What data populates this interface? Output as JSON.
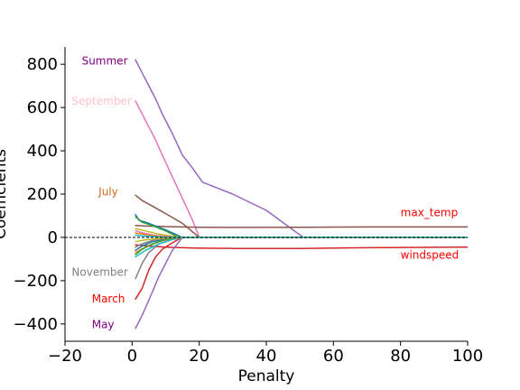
{
  "chart_data": {
    "type": "line",
    "title": "",
    "xlabel": "Penalty",
    "ylabel": "Coefficients",
    "xlim": [
      -20,
      100
    ],
    "ylim": [
      -480,
      880
    ],
    "xticks": [
      -20,
      0,
      20,
      40,
      60,
      80,
      100
    ],
    "yticks": [
      -400,
      -200,
      0,
      200,
      400,
      600,
      800
    ],
    "zero_line": true,
    "grid": false,
    "annotations": [
      {
        "text": "Summer",
        "x": -15,
        "y": 815,
        "color": "#800080"
      },
      {
        "text": "September",
        "x": -18,
        "y": 630,
        "color": "#ffc0cb"
      },
      {
        "text": "July",
        "x": -10,
        "y": 210,
        "color": "#d2691e"
      },
      {
        "text": "November",
        "x": -18,
        "y": -160,
        "color": "#808080"
      },
      {
        "text": "March",
        "x": -12,
        "y": -283,
        "color": "#ff0000"
      },
      {
        "text": "May",
        "x": -12,
        "y": -403,
        "color": "#800080"
      },
      {
        "text": "max_temp",
        "x": 80,
        "y": 115,
        "color": "#ff0000"
      },
      {
        "text": "windspeed",
        "x": 80,
        "y": -82,
        "color": "#ff0000"
      }
    ],
    "series": [
      {
        "color": "#9467bd",
        "x": [
          1,
          3,
          5,
          7,
          9,
          12,
          15,
          18,
          21,
          30,
          40,
          51,
          60,
          80,
          100
        ],
        "y": [
          820,
          760,
          700,
          640,
          570,
          480,
          380,
          320,
          255,
          200,
          125,
          0,
          0,
          0,
          0
        ]
      },
      {
        "color": "#e377c2",
        "x": [
          1,
          3,
          5,
          7,
          9,
          12,
          15,
          18,
          20,
          30,
          60,
          100
        ],
        "y": [
          630,
          570,
          510,
          450,
          380,
          280,
          180,
          80,
          0,
          0,
          0,
          0
        ]
      },
      {
        "color": "#8c564b",
        "x": [
          1,
          3,
          6,
          10,
          15,
          20,
          30,
          50,
          70,
          100
        ],
        "y": [
          195,
          170,
          145,
          110,
          65,
          0,
          0,
          0,
          0,
          0
        ]
      },
      {
        "color": "#8c564b",
        "x": [
          1,
          5,
          10,
          15,
          20,
          30,
          50,
          70,
          100
        ],
        "y": [
          55,
          52,
          50,
          48,
          47,
          46,
          47,
          48,
          48
        ]
      },
      {
        "color": "#d62728",
        "x": [
          1,
          5,
          10,
          15,
          20,
          30,
          50,
          70,
          100
        ],
        "y": [
          -35,
          -40,
          -45,
          -48,
          -50,
          -51,
          -51,
          -48,
          -45
        ]
      },
      {
        "color": "#d62728",
        "x": [
          1,
          3,
          5,
          7,
          9,
          12,
          15,
          20,
          60,
          100
        ],
        "y": [
          -285,
          -235,
          -150,
          -90,
          -55,
          -25,
          0,
          0,
          0,
          0
        ]
      },
      {
        "color": "#9467bd",
        "x": [
          1,
          3,
          5,
          8,
          10,
          12,
          15,
          20,
          60,
          100
        ],
        "y": [
          -420,
          -360,
          -290,
          -180,
          -120,
          -60,
          0,
          0,
          0,
          0
        ]
      },
      {
        "color": "#7f7f7f",
        "x": [
          1,
          3,
          5,
          8,
          12,
          16,
          20,
          60,
          100
        ],
        "y": [
          -190,
          -120,
          -70,
          -30,
          -10,
          0,
          0,
          0,
          0
        ]
      },
      {
        "color": "#1f77b4",
        "x": [
          1,
          2,
          5,
          10,
          15,
          20,
          60,
          100
        ],
        "y": [
          105,
          80,
          65,
          35,
          0,
          0,
          0,
          0
        ]
      },
      {
        "color": "#2ca02c",
        "x": [
          1,
          3,
          6,
          10,
          14,
          20,
          60,
          100
        ],
        "y": [
          95,
          70,
          55,
          30,
          0,
          0,
          0,
          0
        ]
      },
      {
        "color": "#bcbd22",
        "x": [
          1,
          4,
          8,
          12,
          16,
          20,
          60,
          100
        ],
        "y": [
          40,
          30,
          15,
          5,
          0,
          0,
          0,
          0
        ]
      },
      {
        "color": "#17becf",
        "x": [
          1,
          4,
          8,
          12,
          16,
          20,
          60,
          100
        ],
        "y": [
          -90,
          -60,
          -30,
          -10,
          0,
          0,
          0,
          0
        ]
      },
      {
        "color": "#ff7f0e",
        "x": [
          1,
          4,
          8,
          12,
          16,
          20,
          60,
          100
        ],
        "y": [
          -70,
          -45,
          -20,
          -5,
          0,
          0,
          0,
          0
        ]
      },
      {
        "color": "#1f77b4",
        "x": [
          1,
          3,
          6,
          10,
          14,
          20,
          60,
          100
        ],
        "y": [
          -60,
          -40,
          -20,
          -8,
          0,
          0,
          0,
          0
        ]
      },
      {
        "color": "#2ca02c",
        "x": [
          1,
          3,
          6,
          10,
          14,
          20,
          60,
          100
        ],
        "y": [
          -80,
          -55,
          -30,
          -10,
          0,
          0,
          0,
          0
        ]
      },
      {
        "color": "#e377c2",
        "x": [
          1,
          3,
          6,
          10,
          14,
          20,
          60,
          100
        ],
        "y": [
          30,
          22,
          12,
          4,
          0,
          0,
          0,
          0
        ]
      },
      {
        "color": "#ff7f0e",
        "x": [
          1,
          3,
          6,
          10,
          14,
          20,
          60,
          100
        ],
        "y": [
          20,
          15,
          8,
          2,
          0,
          0,
          0,
          0
        ]
      },
      {
        "color": "#7f7f7f",
        "x": [
          1,
          3,
          6,
          10,
          14,
          20,
          60,
          100
        ],
        "y": [
          -45,
          -30,
          -15,
          -5,
          0,
          0,
          0,
          0
        ]
      },
      {
        "color": "#bcbd22",
        "x": [
          1,
          3,
          6,
          10,
          14,
          20,
          60,
          100
        ],
        "y": [
          -20,
          -14,
          -8,
          -2,
          0,
          0,
          0,
          0
        ]
      },
      {
        "color": "#17becf",
        "x": [
          1,
          3,
          6,
          10,
          14,
          20,
          60,
          100
        ],
        "y": [
          10,
          7,
          4,
          1,
          0,
          0,
          0,
          0
        ]
      }
    ]
  }
}
